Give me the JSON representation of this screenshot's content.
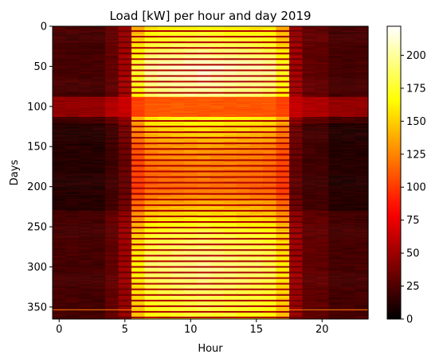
{
  "chart_data": {
    "type": "heatmap",
    "title": "Load [kW] per hour and day 2019",
    "xlabel": "Hour",
    "ylabel": "Days",
    "x_range": [
      -0.5,
      23.5
    ],
    "y_range": [
      0,
      365
    ],
    "y_inverted": true,
    "x_ticks": [
      0,
      5,
      10,
      15,
      20
    ],
    "y_ticks": [
      0,
      50,
      100,
      150,
      200,
      250,
      300,
      350
    ],
    "colormap": "hot",
    "colorbar": {
      "range": [
        0,
        222
      ],
      "ticks": [
        0,
        25,
        50,
        75,
        100,
        125,
        150,
        175,
        200
      ]
    },
    "hours": 24,
    "days": 365,
    "profile": {
      "night_load": 30,
      "day_start_hour": 5.5,
      "day_end_hour": 17.5,
      "weekday_peak_by_season": [
        {
          "day": 0,
          "peak": 165
        },
        {
          "day": 50,
          "peak": 215
        },
        {
          "day": 85,
          "peak": 200
        },
        {
          "day": 150,
          "peak": 135
        },
        {
          "day": 200,
          "peak": 120
        },
        {
          "day": 260,
          "peak": 185
        },
        {
          "day": 300,
          "peak": 200
        },
        {
          "day": 365,
          "peak": 175
        }
      ],
      "weekend_load": 55,
      "holiday_band_days": [
        88,
        112
      ],
      "holiday_band_load": 85
    },
    "grid": false
  }
}
